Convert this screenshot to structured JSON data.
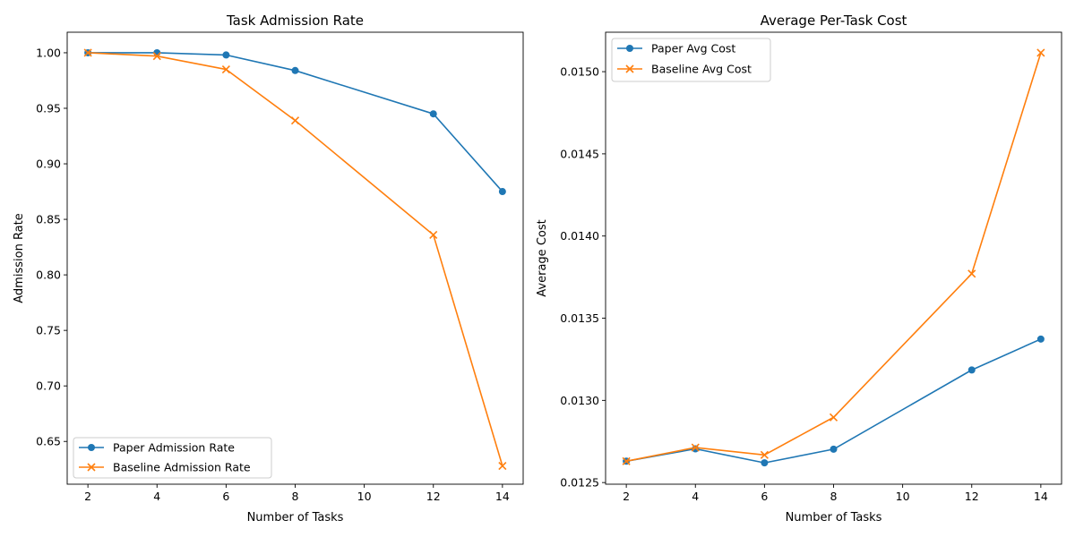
{
  "colors": {
    "series1": "#1f77b4",
    "series2": "#ff7f0e",
    "frame": "#000000",
    "legend_border": "#cccccc"
  },
  "chart_data": [
    {
      "type": "line",
      "title": "Task Admission Rate",
      "xlabel": "Number of Tasks",
      "ylabel": "Admission Rate",
      "grid": false,
      "legend_position": "lower-left",
      "xlim": [
        1.4,
        14.6
      ],
      "ylim": [
        0.6115,
        1.0185
      ],
      "xticks": [
        2,
        4,
        6,
        8,
        10,
        12,
        14
      ],
      "xtick_labels": [
        "2",
        "4",
        "6",
        "8",
        "10",
        "12",
        "14"
      ],
      "yticks": [
        0.65,
        0.7,
        0.75,
        0.8,
        0.85,
        0.9,
        0.95,
        1.0
      ],
      "ytick_labels": [
        "0.65",
        "0.70",
        "0.75",
        "0.80",
        "0.85",
        "0.90",
        "0.95",
        "1.00"
      ],
      "x": [
        2,
        4,
        6,
        8,
        12,
        14
      ],
      "series": [
        {
          "name": "Paper Admission Rate",
          "marker": "circle",
          "values": [
            1.0,
            1.0,
            0.998,
            0.984,
            0.945,
            0.875
          ]
        },
        {
          "name": "Baseline Admission Rate",
          "marker": "x",
          "values": [
            1.0,
            0.997,
            0.985,
            0.939,
            0.836,
            0.628
          ]
        }
      ]
    },
    {
      "type": "line",
      "title": "Average Per-Task Cost",
      "xlabel": "Number of Tasks",
      "ylabel": "Average Cost",
      "grid": false,
      "legend_position": "upper-left",
      "xlim": [
        1.4,
        14.6
      ],
      "ylim": [
        0.01249,
        0.01524
      ],
      "xticks": [
        2,
        4,
        6,
        8,
        10,
        12,
        14
      ],
      "xtick_labels": [
        "2",
        "4",
        "6",
        "8",
        "10",
        "12",
        "14"
      ],
      "yticks": [
        0.0125,
        0.013,
        0.0135,
        0.014,
        0.0145,
        0.015
      ],
      "ytick_labels": [
        "0.0125",
        "0.0130",
        "0.0135",
        "0.0140",
        "0.0145",
        "0.0150"
      ],
      "x": [
        2,
        4,
        6,
        8,
        12,
        14
      ],
      "series": [
        {
          "name": "Paper Avg Cost",
          "marker": "circle",
          "values": [
            0.01263,
            0.012705,
            0.01262,
            0.012703,
            0.013185,
            0.013373
          ]
        },
        {
          "name": "Baseline Avg Cost",
          "marker": "x",
          "values": [
            0.01263,
            0.012713,
            0.012668,
            0.012897,
            0.013771,
            0.015115
          ]
        }
      ]
    }
  ]
}
